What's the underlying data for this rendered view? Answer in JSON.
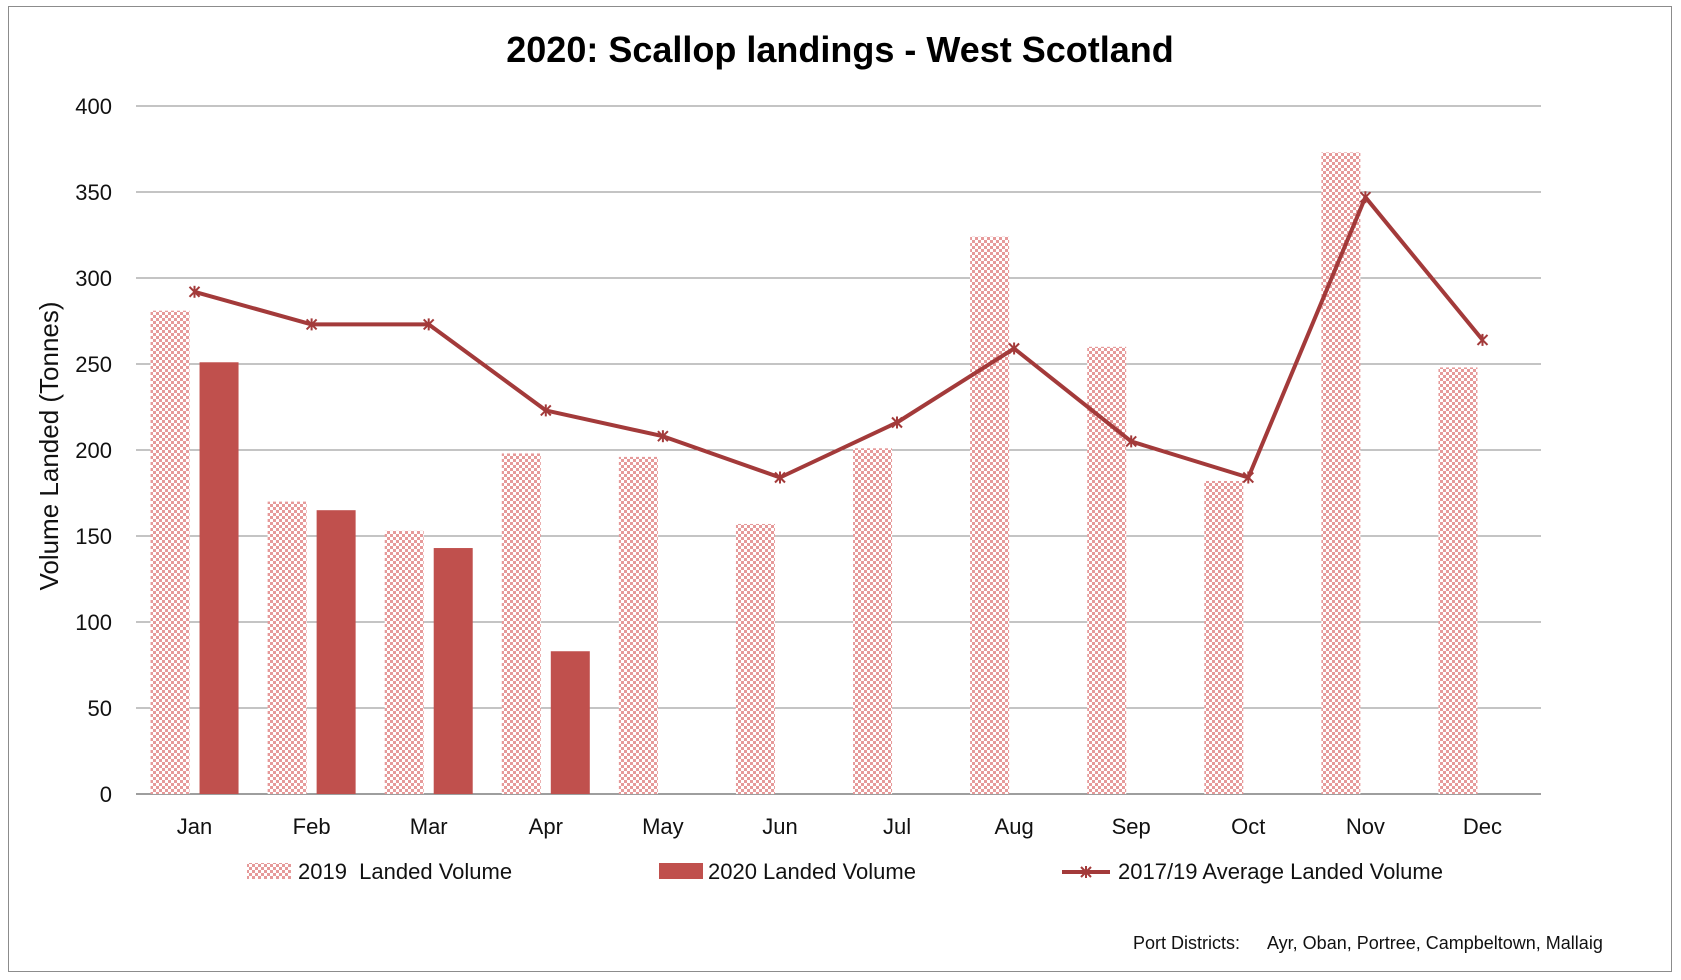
{
  "chart_data": {
    "type": "bar",
    "title": "2020: Scallop landings - West Scotland",
    "xlabel": "",
    "ylabel": "Volume Landed (Tonnes)",
    "ylim": [
      0,
      400
    ],
    "yticks": [
      0,
      50,
      100,
      150,
      200,
      250,
      300,
      350,
      400
    ],
    "categories": [
      "Jan",
      "Feb",
      "Mar",
      "Apr",
      "May",
      "Jun",
      "Jul",
      "Aug",
      "Sep",
      "Oct",
      "Nov",
      "Dec"
    ],
    "series": [
      {
        "name": "2019  Landed Volume",
        "kind": "bar",
        "pattern": "checkered",
        "color": "#f2b8b8",
        "values": [
          281,
          170,
          153,
          198,
          196,
          157,
          201,
          324,
          260,
          182,
          373,
          248
        ]
      },
      {
        "name": "2020 Landed Volume",
        "kind": "bar",
        "color": "#c0504d",
        "values": [
          251,
          165,
          143,
          83,
          null,
          null,
          null,
          null,
          null,
          null,
          null,
          null
        ]
      },
      {
        "name": "2017/19 Average Landed Volume",
        "kind": "line",
        "marker": "star",
        "color": "#a33a3a",
        "values": [
          292,
          273,
          273,
          223,
          208,
          184,
          216,
          259,
          205,
          184,
          347,
          264
        ]
      }
    ],
    "grid": true,
    "legend": "bottom",
    "footnote": {
      "label": "Port Districts:",
      "value": "Ayr, Oban, Portree, Campbeltown, Mallaig"
    }
  }
}
